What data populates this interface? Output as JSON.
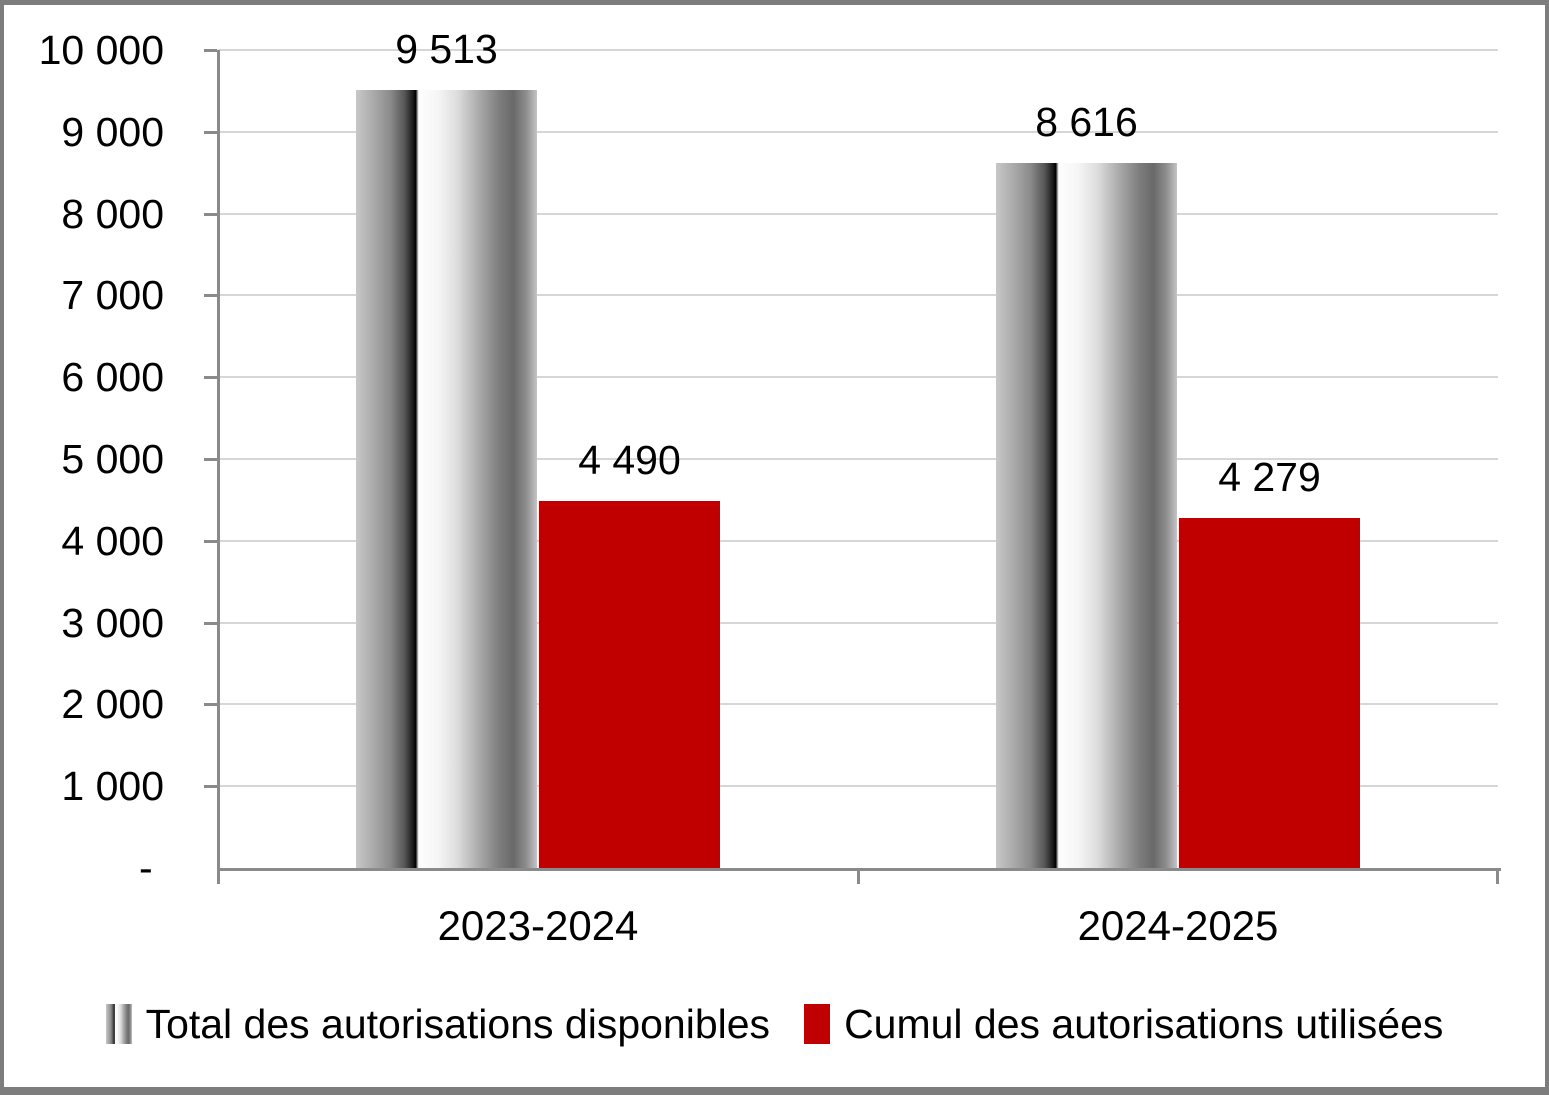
{
  "window": {
    "border_color": "#7d7d7d",
    "background_color": "#ffffff"
  },
  "chart_data": {
    "type": "bar",
    "title": "",
    "categories": [
      "2023-2024",
      "2024-2025"
    ],
    "series": [
      {
        "name": "Total des autorisations disponibles",
        "values": [
          9513,
          8616
        ],
        "value_labels": [
          "9 513",
          "8 616"
        ],
        "fill": "gray-gradient"
      },
      {
        "name": "Cumul des autorisations utilisées",
        "values": [
          4490,
          4279
        ],
        "value_labels": [
          "4 490",
          "4 279"
        ],
        "fill": "#c00000"
      }
    ],
    "ylim": [
      0,
      10000
    ],
    "ytick_step": 1000,
    "ytick_labels": [
      "10 000",
      "9 000",
      "8 000",
      "7 000",
      "6 000",
      "5 000",
      "4 000",
      "3 000",
      "2 000",
      "1 000",
      "- "
    ],
    "grid": true,
    "legend_position": "bottom",
    "axis_color": "#8a8a8a",
    "gridline_color": "#d6d6d6",
    "red_color": "#c00000",
    "label_color": "#000000"
  },
  "legend": {
    "items": [
      {
        "label": "Total des autorisations disponibles",
        "swatch": "gray-gradient"
      },
      {
        "label": "Cumul des autorisations utilisées",
        "swatch": "#c00000"
      }
    ]
  }
}
